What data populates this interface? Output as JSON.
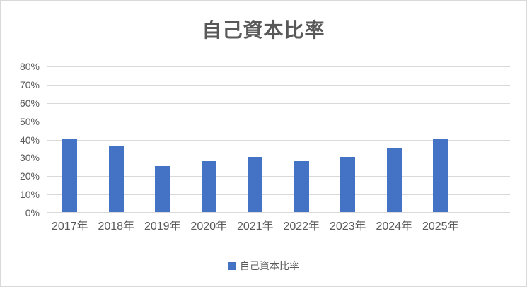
{
  "window": {
    "background": "#ffffff",
    "border_color": "#d9d9d9"
  },
  "chart_data": {
    "type": "bar",
    "title": "自己資本比率",
    "categories": [
      "2017年",
      "2018年",
      "2019年",
      "2020年",
      "2021年",
      "2022年",
      "2023年",
      "2024年",
      "2025年"
    ],
    "values": [
      40,
      36,
      25,
      28,
      30,
      28,
      30,
      35,
      40
    ],
    "unit": "%",
    "xlabel": "",
    "ylabel": "",
    "ylim": [
      0,
      80
    ],
    "ytick_step": 10,
    "ytick_labels": [
      "0%",
      "10%",
      "20%",
      "30%",
      "40%",
      "50%",
      "60%",
      "70%",
      "80%"
    ],
    "grid": true,
    "x_slots": 10,
    "legend": {
      "position": "bottom",
      "label": "自己資本比率",
      "marker_color": "#4472c4"
    },
    "colors": {
      "bar": "#4472c4",
      "gridline": "#d9d9d9",
      "axis_line": "#d9d9d9",
      "text": "#595959",
      "title_text": "#595959"
    }
  }
}
